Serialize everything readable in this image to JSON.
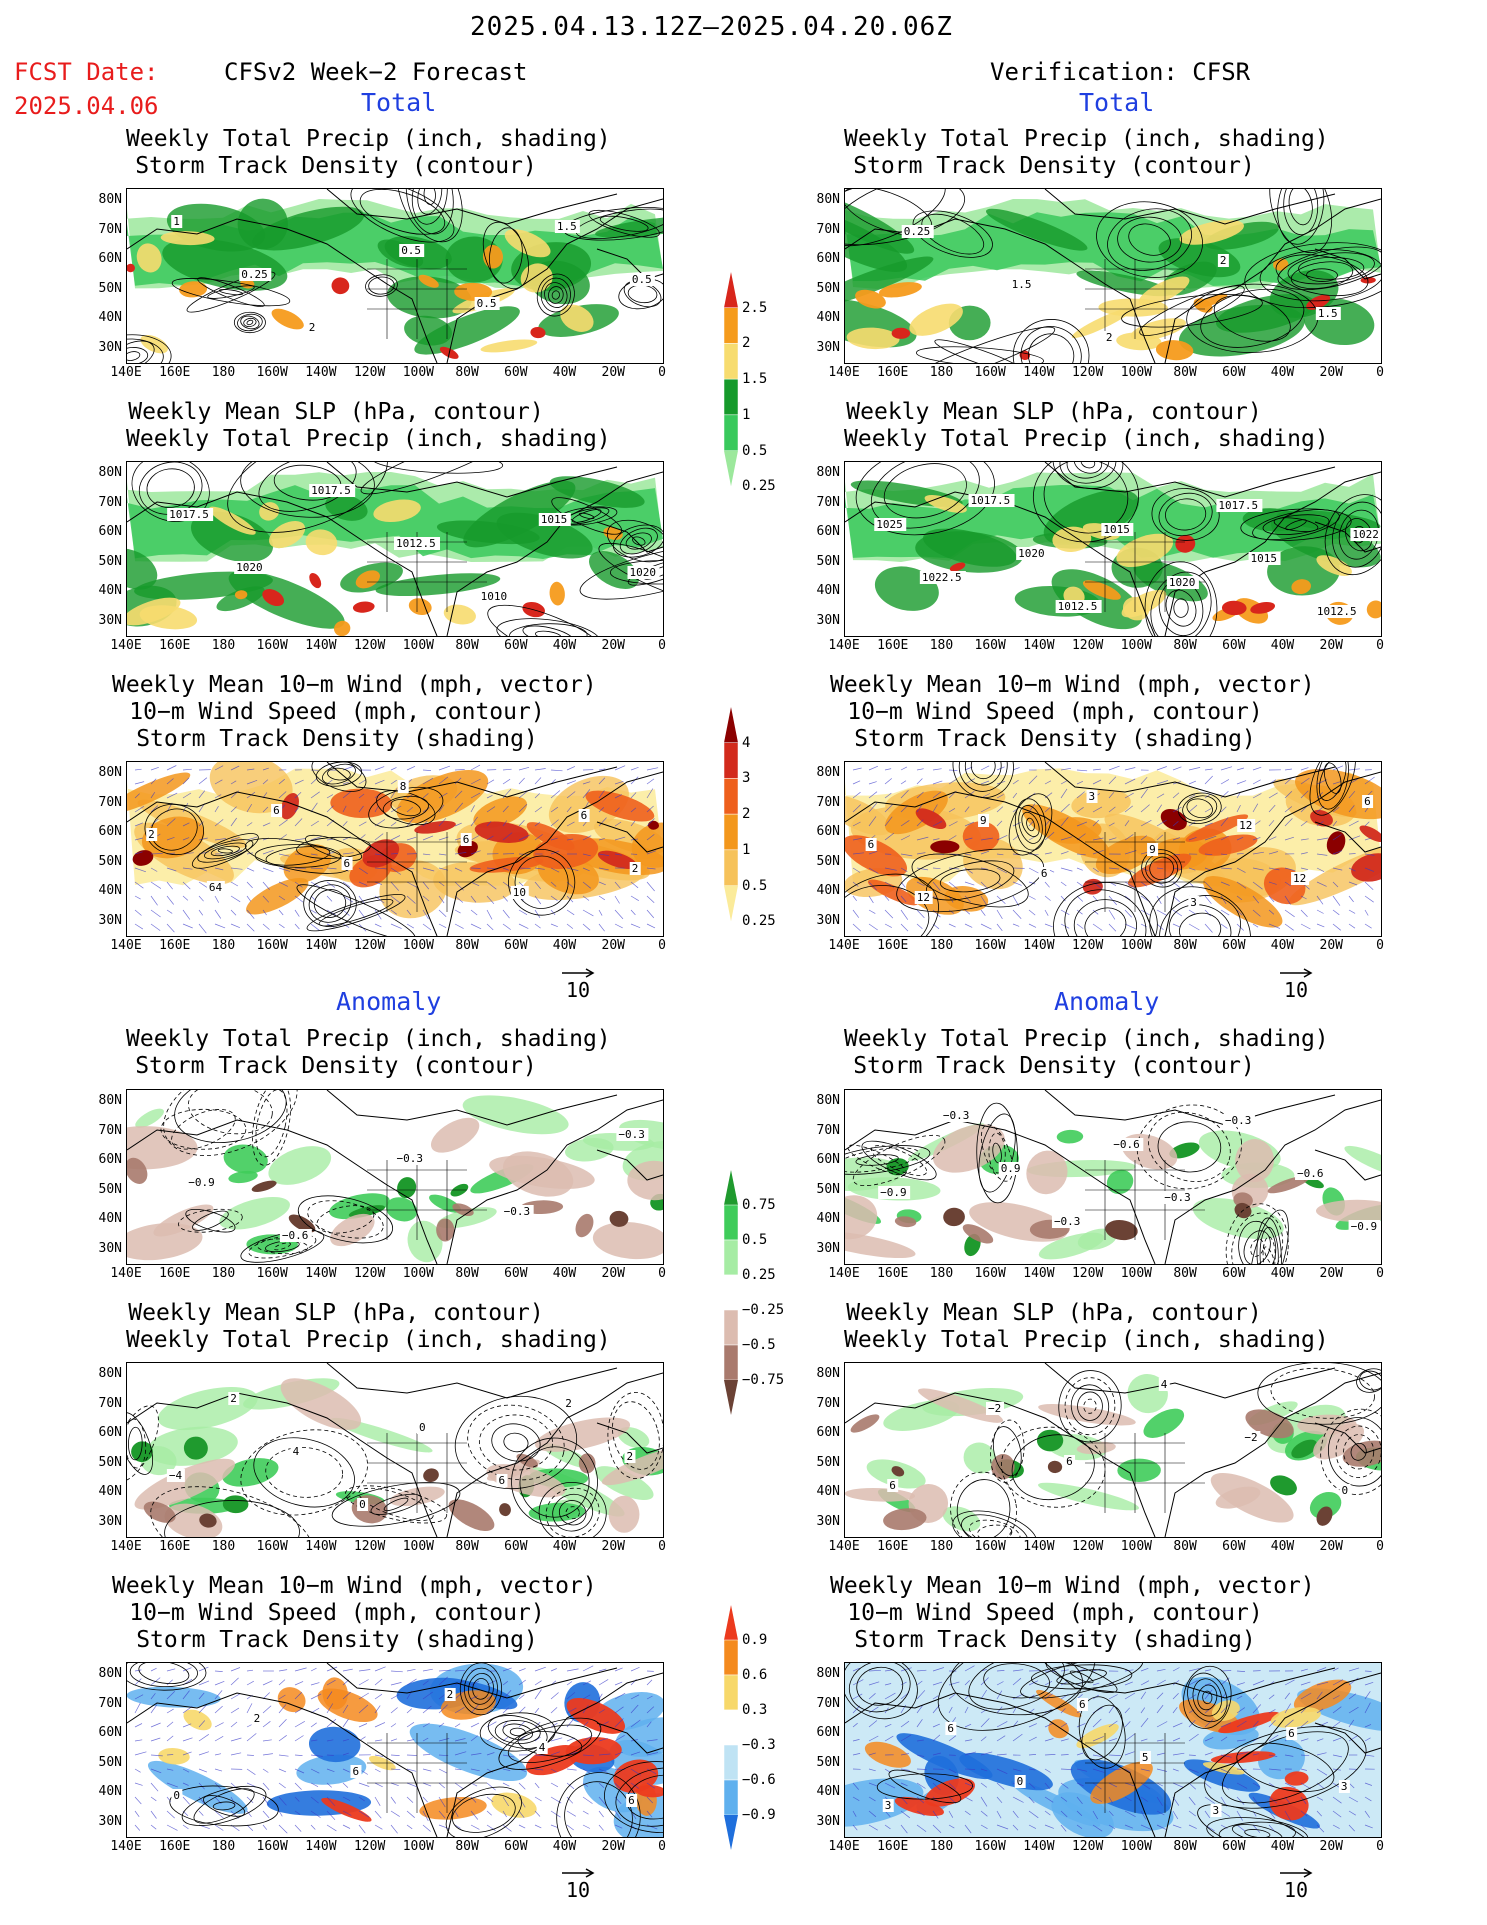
{
  "header": {
    "date_range": "2025.04.13.12Z–2025.04.20.06Z",
    "fcst_label": "FCST Date:",
    "fcst_date": "2025.04.06",
    "left_title": "CFSv2 Week−2 Forecast",
    "right_title": "Verification: CFSR"
  },
  "sections": {
    "total": "Total",
    "anomaly": "Anomaly"
  },
  "panel_titles": {
    "precip_storm": [
      "Weekly Total Precip (inch, shading)",
      "Storm Track Density (contour)"
    ],
    "slp_precip": [
      "Weekly Mean SLP (hPa, contour)",
      "Weekly Total Precip (inch, shading)"
    ],
    "wind_storm": [
      "Weekly Mean 10−m Wind (mph, vector)",
      "10−m Wind Speed (mph, contour)",
      "Storm Track Density (shading)"
    ]
  },
  "axes": {
    "lat_labels": [
      "80N",
      "70N",
      "60N",
      "50N",
      "40N",
      "30N"
    ],
    "lon_labels": [
      "140E",
      "160E",
      "180",
      "160W",
      "140W",
      "120W",
      "100W",
      "80W",
      "60W",
      "40W",
      "20W",
      "0"
    ]
  },
  "vector_scale": "10",
  "colorbars": {
    "precip_total": {
      "labels": [
        "2.5",
        "2",
        "1.5",
        "1",
        "0.5",
        "0.25"
      ],
      "colors": [
        "#d8261c",
        "#f59b1c",
        "#f7dc6f",
        "#169a2b",
        "#39c95c",
        "#9ce89c"
      ]
    },
    "storm_total": {
      "labels": [
        "4",
        "3",
        "2",
        "1",
        "0.5",
        "0.25"
      ],
      "colors": [
        "#8b0000",
        "#d22a1c",
        "#ee5f1c",
        "#f3971c",
        "#f6c25a",
        "#fbeb9a"
      ]
    },
    "precip_anom": {
      "labels": [
        "0.75",
        "0.5",
        "0.25",
        "−0.25",
        "−0.5",
        "−0.75"
      ],
      "colors": [
        "#1f9a2e",
        "#3fcc5a",
        "#a6eca4",
        "#ffffff",
        "#dcbcb0",
        "#a97a6d",
        "#6b4235"
      ]
    },
    "storm_anom": {
      "labels": [
        "0.9",
        "0.6",
        "0.3",
        "−0.3",
        "−0.6",
        "−0.9"
      ],
      "colors": [
        "#ec3a1e",
        "#f48a1e",
        "#f7d86a",
        "#ffffff",
        "#bfe3f4",
        "#5fb0ee",
        "#1f6fdc"
      ]
    }
  },
  "contour_labels": {
    "p1L": [
      "1",
      "0.25",
      "2",
      "0.5",
      "0.5",
      "1.5",
      "0.5"
    ],
    "p1R": [
      "0.25",
      "1.5",
      "2",
      "2",
      "1.5"
    ],
    "p2L": [
      "1017.5",
      "1020",
      "1017.5",
      "1012.5",
      "1010",
      "1015",
      "1020"
    ],
    "p2R": [
      "1025",
      "1022.5",
      "1017.5",
      "1020",
      "1012.5",
      "1015",
      "1020",
      "1017.5",
      "1015",
      "1012.5",
      "1022.5"
    ],
    "p3L": [
      "2",
      "64",
      "6",
      "6",
      "8",
      "6",
      "10",
      "6",
      "2"
    ],
    "p3R": [
      "6",
      "12",
      "9",
      "6",
      "3",
      "9",
      "3",
      "12",
      "12",
      "6"
    ],
    "p4L": [
      "−0.9",
      "−0.6",
      "−0.3",
      "−0.3",
      "−0.3"
    ],
    "p4R": [
      "−0.9",
      "−0.3",
      "0.9",
      "−0.3",
      "−0.6",
      "−0.3",
      "−0.3",
      "−0.6",
      "−0.9"
    ],
    "p5L": [
      "−4",
      "2",
      "4",
      "0",
      "0",
      "6",
      "2",
      "2"
    ],
    "p5R": [
      "6",
      "−2",
      "6",
      "4",
      "−2",
      "0"
    ],
    "p6L": [
      "0",
      "2",
      "6",
      "2",
      "4",
      "6"
    ],
    "p6R": [
      "3",
      "6",
      "0",
      "6",
      "5",
      "3",
      "6",
      "3"
    ]
  }
}
